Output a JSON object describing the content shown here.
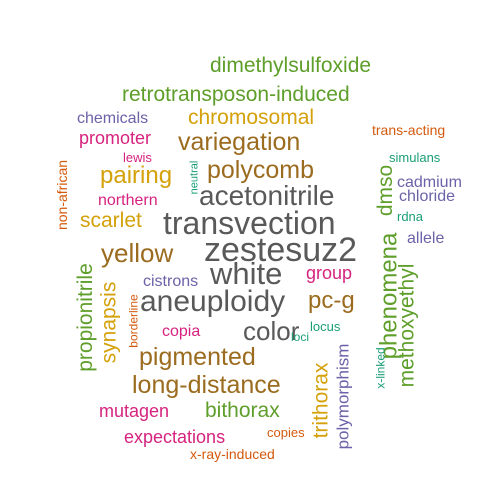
{
  "colors": {
    "gray": "#595959",
    "brown": "#9B6B1F",
    "gold": "#D4A10A",
    "green": "#5E9E2A",
    "magenta": "#D6237F",
    "orange": "#D45A0E",
    "purple": "#6B62A8",
    "teal": "#1B9E77"
  },
  "words": [
    {
      "text": "zestesuz2",
      "color": "gray",
      "icon": ""
    },
    {
      "text": "transvection",
      "color": "gray"
    },
    {
      "text": "acetonitrile",
      "color": "gray"
    },
    {
      "text": "aneuploidy",
      "color": "gray"
    },
    {
      "text": "white",
      "color": "gray"
    },
    {
      "text": "color",
      "color": "gray"
    },
    {
      "text": "polycomb",
      "color": "brown"
    },
    {
      "text": "variegation",
      "color": "brown"
    },
    {
      "text": "long-distance",
      "color": "brown"
    },
    {
      "text": "pigmented",
      "color": "brown"
    },
    {
      "text": "pc-g",
      "color": "brown"
    },
    {
      "text": "yellow",
      "color": "brown"
    },
    {
      "text": "chromosomal",
      "color": "gold"
    },
    {
      "text": "pairing",
      "color": "gold"
    },
    {
      "text": "scarlet",
      "color": "gold"
    },
    {
      "text": "synapsis",
      "color": "gold"
    },
    {
      "text": "trithorax",
      "color": "gold"
    },
    {
      "text": "dimethylsulfoxide",
      "color": "green"
    },
    {
      "text": "retrotransposon-induced",
      "color": "green"
    },
    {
      "text": "bithorax",
      "color": "green"
    },
    {
      "text": "phenomena",
      "color": "green"
    },
    {
      "text": "methoxyethyl",
      "color": "green"
    },
    {
      "text": "dmso",
      "color": "green"
    },
    {
      "text": "propionitrile",
      "color": "green"
    },
    {
      "text": "promoter",
      "color": "magenta"
    },
    {
      "text": "northern",
      "color": "magenta"
    },
    {
      "text": "group",
      "color": "magenta"
    },
    {
      "text": "copia",
      "color": "magenta"
    },
    {
      "text": "mutagen",
      "color": "magenta"
    },
    {
      "text": "expectations",
      "color": "magenta"
    },
    {
      "text": "lewis",
      "color": "magenta"
    },
    {
      "text": "trans-acting",
      "color": "orange"
    },
    {
      "text": "non-african",
      "color": "orange"
    },
    {
      "text": "borderline",
      "color": "orange"
    },
    {
      "text": "copies",
      "color": "orange"
    },
    {
      "text": "x-ray-induced",
      "color": "orange"
    },
    {
      "text": "chemicals",
      "color": "purple"
    },
    {
      "text": "cadmium",
      "color": "purple"
    },
    {
      "text": "chloride",
      "color": "purple"
    },
    {
      "text": "allele",
      "color": "purple"
    },
    {
      "text": "cistrons",
      "color": "purple"
    },
    {
      "text": "polymorphism",
      "color": "purple"
    },
    {
      "text": "simulans",
      "color": "teal"
    },
    {
      "text": "rdna",
      "color": "teal"
    },
    {
      "text": "neutral",
      "color": "teal"
    },
    {
      "text": "locus",
      "color": "teal"
    },
    {
      "text": "loci",
      "color": "teal"
    },
    {
      "text": "x-linked",
      "color": "teal"
    }
  ]
}
